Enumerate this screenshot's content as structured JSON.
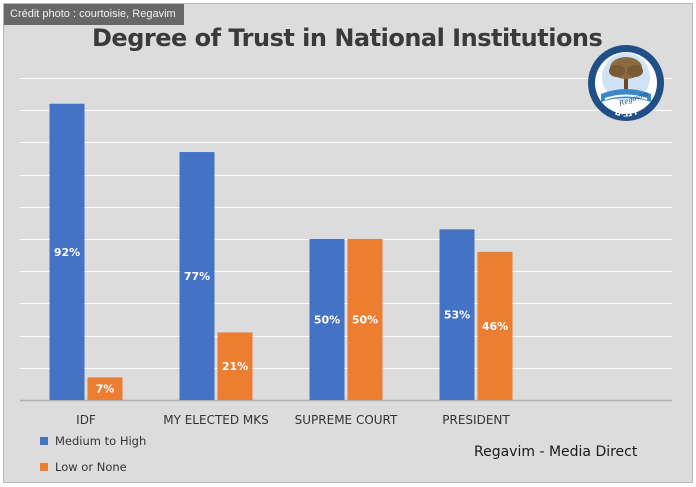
{
  "photo_credit": "Crédit photo : courtoisie, Regavim",
  "logo": {
    "hebrew_text": "רגבים",
    "latin_text": "Regavim"
  },
  "source": "Regavim - Media Direct",
  "colors": {
    "medium_to_high": "#4472c4",
    "low_or_none": "#ed7d31",
    "background": "#dcdcdc",
    "gridline": "#ffffff"
  },
  "chart_data": {
    "type": "bar",
    "title": "Degree of Trust in National Institutions",
    "categories": [
      "IDF",
      "MY ELECTED MKS",
      "SUPREME COURT",
      "PRESIDENT"
    ],
    "series": [
      {
        "name": "Medium to High",
        "values": [
          92,
          77,
          50,
          53
        ],
        "labels": [
          "92%",
          "77%",
          "50%",
          "53%"
        ]
      },
      {
        "name": "Low or None",
        "values": [
          7,
          21,
          50,
          46
        ],
        "labels": [
          "7%",
          "21%",
          "50%",
          "46%"
        ]
      }
    ],
    "ylim": [
      0,
      100
    ],
    "grid": true,
    "legend_position": "bottom-left"
  }
}
